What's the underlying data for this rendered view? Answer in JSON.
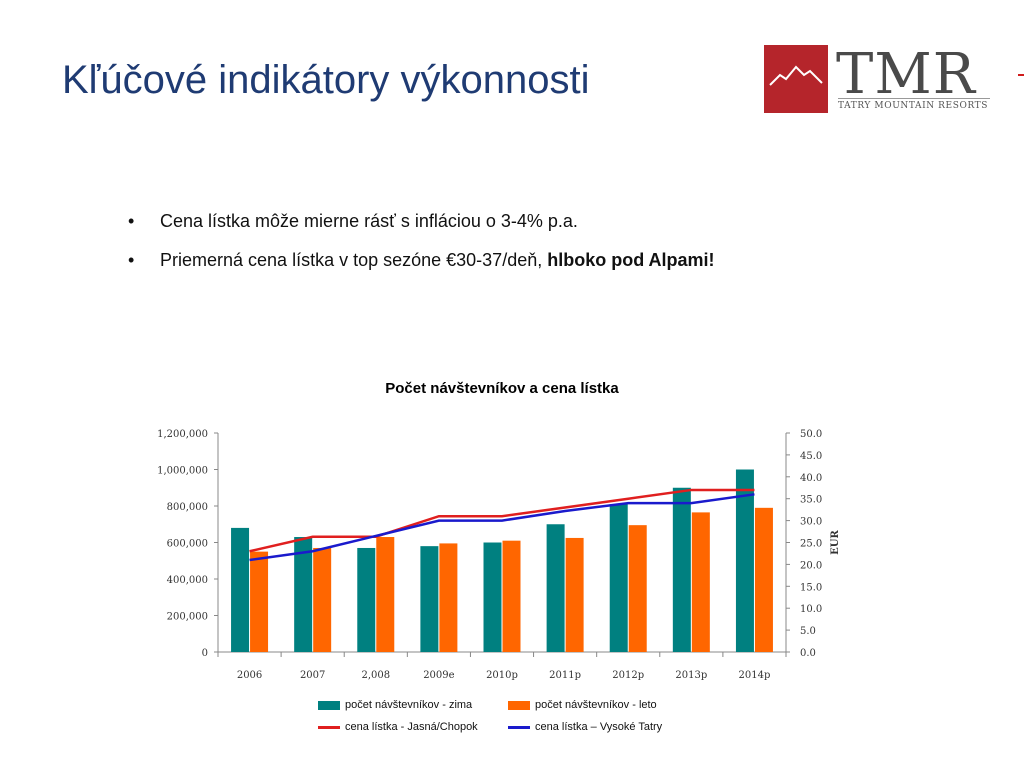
{
  "title": "Kľúčové indikátory výkonnosti",
  "logo": {
    "letters": "TMR",
    "subtitle": "TATRY MOUNTAIN RESORTS"
  },
  "bullets": [
    {
      "marker": "•",
      "text": "Cena lístka môže mierne rásť s infláciou o 3-4% p.a.",
      "bold": ""
    },
    {
      "marker": "•",
      "text": "Priemerná cena lístka v top sezóne €30-37/deň, ",
      "bold": "hlboko pod Alpami!"
    }
  ],
  "colors": {
    "title": "#1f3b73",
    "winter": "#008080",
    "summer": "#ff6600",
    "jasna": "#e01f1f",
    "tatry": "#1a1acc",
    "brand_red": "#b5252b"
  },
  "chart_data": {
    "type": "bar",
    "title": "Počet návštevníkov a cena lístka",
    "categories": [
      "2006",
      "2007",
      "2,008",
      "2009e",
      "2010p",
      "2011p",
      "2012p",
      "2013p",
      "2014p"
    ],
    "series": [
      {
        "name": "počet návštevníkov - zima",
        "type": "bar",
        "axis": "left",
        "values": [
          680000,
          630000,
          570000,
          580000,
          600000,
          700000,
          810000,
          900000,
          1000000
        ]
      },
      {
        "name": "počet návštevníkov - leto",
        "type": "bar",
        "axis": "left",
        "values": [
          550000,
          570000,
          630000,
          595000,
          610000,
          625000,
          695000,
          765000,
          790000
        ]
      },
      {
        "name": "cena lístka - Jasná/Chopok",
        "type": "line",
        "axis": "right",
        "values": [
          23.0,
          26.3,
          26.3,
          31.0,
          31.0,
          33.0,
          35.0,
          37.0,
          37.0
        ]
      },
      {
        "name": "cena lístka – Vysoké Tatry",
        "type": "line",
        "axis": "right",
        "values": [
          21.0,
          23.0,
          26.5,
          30.0,
          30.0,
          32.2,
          34.0,
          34.0,
          36.0
        ]
      }
    ],
    "ylim_left": [
      0,
      1200000
    ],
    "yticks_left": [
      "0",
      "200,000",
      "400,000",
      "600,000",
      "800,000",
      "1,000,000",
      "1,200,000"
    ],
    "ylim_right": [
      0,
      50
    ],
    "yticks_right": [
      "0.0",
      "5.0",
      "10.0",
      "15.0",
      "20.0",
      "25.0",
      "30.0",
      "35.0",
      "40.0",
      "45.0",
      "50.0"
    ],
    "ylabel_right": "EUR",
    "xlabel": "",
    "ylabel": "",
    "grid": false,
    "legend": "bottom"
  }
}
